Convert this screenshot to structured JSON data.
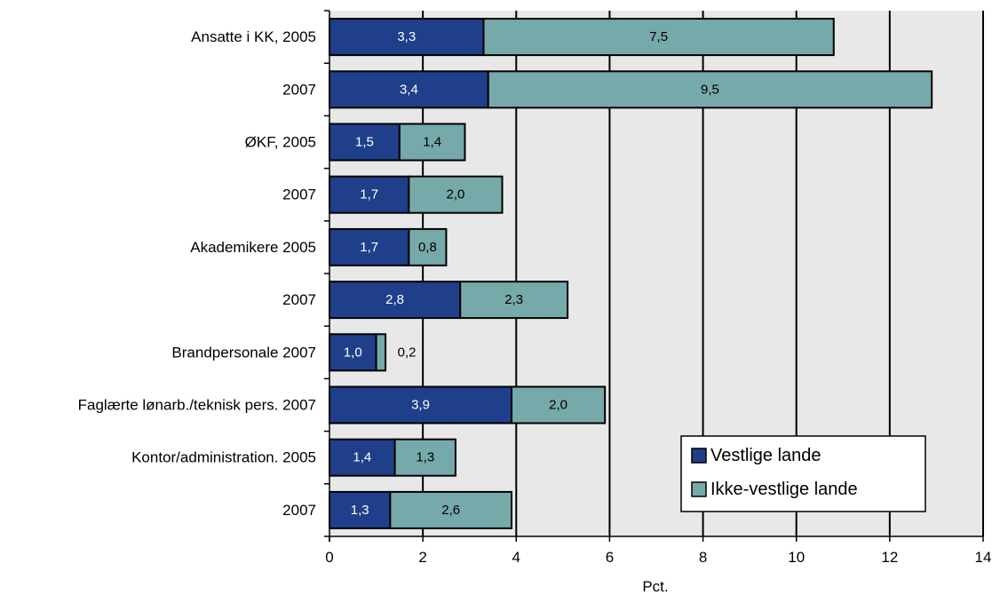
{
  "chart_data": {
    "type": "bar",
    "orientation": "horizontal",
    "stacked": true,
    "categories": [
      "Ansatte i KK, 2005",
      "2007",
      "ØKF, 2005",
      "2007",
      "Akademikere 2005",
      "2007",
      "Brandpersonale 2007",
      "Faglærte lønarb./teknisk pers.  2007",
      "Kontor/administration. 2005",
      "2007"
    ],
    "series": [
      {
        "name": "Vestlige lande",
        "color": "#1f3f8a",
        "values": [
          3.3,
          3.4,
          1.5,
          1.7,
          1.7,
          2.8,
          1.0,
          3.9,
          1.4,
          1.3
        ],
        "labels": [
          "3,3",
          "3,4",
          "1,5",
          "1,7",
          "1,7",
          "2,8",
          "1,0",
          "3,9",
          "1,4",
          "1,3"
        ]
      },
      {
        "name": "Ikke-vestlige lande",
        "color": "#76a9a9",
        "values": [
          7.5,
          9.5,
          1.4,
          2.0,
          0.8,
          2.3,
          0.2,
          2.0,
          1.3,
          2.6
        ],
        "labels": [
          "7,5",
          "9,5",
          "1,4",
          "2,0",
          "0,8",
          "2,3",
          "0,2",
          "2,0",
          "1,3",
          "2,6"
        ]
      }
    ],
    "xlabel": "Pct.",
    "ylabel": "",
    "xlim": [
      0,
      14
    ],
    "xticks": [
      "0",
      "2",
      "4",
      "6",
      "8",
      "10",
      "12",
      "14"
    ],
    "grid": true,
    "plot_background": "#e8e8e8",
    "legend_position": "bottom-right"
  }
}
